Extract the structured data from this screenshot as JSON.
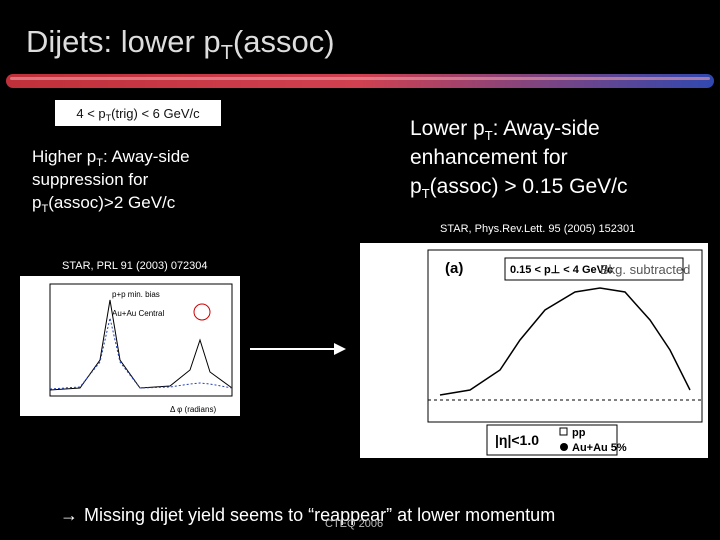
{
  "title": {
    "pre": "Dijets: lower p",
    "sub": "T",
    "post": "(assoc)"
  },
  "trigger_box": {
    "pre": "4 < p",
    "sub": "T",
    "post": "(trig) < 6 GeV/c"
  },
  "left_note": {
    "line1_pre": "Higher p",
    "line1_sub": "T",
    "line1_post": ": Away-side",
    "line2": "suppression for",
    "line3_pre": "p",
    "line3_sub": "T",
    "line3_post": "(assoc)>2 GeV/c"
  },
  "right_note": {
    "line1_pre": "Lower p",
    "line1_sub": "T",
    "line1_post": ": Away-side",
    "line2": "enhancement for",
    "line3_pre": "p",
    "line3_sub": "T",
    "line3_post": "(assoc) > 0.15 GeV/c"
  },
  "right_ref": "STAR, Phys.Rev.Lett. 95 (2005) 152301",
  "left_ref": "STAR, PRL 91 (2003) 072304",
  "left_plot": {
    "legend1": "p+p min. bias",
    "legend2": "Au+Au Central",
    "xlabel": "Δ φ (radians)"
  },
  "right_plot": {
    "panel": "(a)",
    "range": "0.15 < p⊥ < 4 GeV/c",
    "overlay": "Bkg. subtracted",
    "eta": "|η|<1.0",
    "legend1": "pp",
    "legend2": "Au+Au 5%"
  },
  "footer": {
    "text": "Missing dijet yield seems to “reappear” at lower momentum",
    "conference": "CTEQ 2006"
  }
}
